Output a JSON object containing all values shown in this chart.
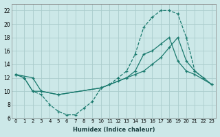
{
  "xlabel": "Humidex (Indice chaleur)",
  "background_color": "#cce8e8",
  "grid_color": "#aacccc",
  "line_color": "#1a7a6e",
  "xlim": [
    -0.5,
    23.5
  ],
  "ylim": [
    6,
    23
  ],
  "xticks": [
    0,
    1,
    2,
    3,
    4,
    5,
    6,
    7,
    8,
    9,
    10,
    11,
    12,
    13,
    14,
    15,
    16,
    17,
    18,
    19,
    20,
    21,
    22,
    23
  ],
  "yticks": [
    6,
    8,
    10,
    12,
    14,
    16,
    18,
    20,
    22
  ],
  "line1_x": [
    0,
    1,
    2,
    3,
    4,
    5,
    6,
    7,
    8,
    9,
    10,
    11,
    12,
    13,
    14,
    15,
    16,
    17,
    18,
    19,
    20,
    21,
    22
  ],
  "line1_y": [
    12.5,
    12,
    10,
    9.5,
    8,
    7,
    6.5,
    6.5,
    7.5,
    8.5,
    10.5,
    11,
    12,
    13,
    15.5,
    19.5,
    21,
    22,
    22,
    21.5,
    18,
    13,
    12
  ],
  "line2_x": [
    0,
    2,
    3,
    5,
    10,
    13,
    14,
    15,
    16,
    17,
    18,
    19,
    20,
    21,
    23
  ],
  "line2_y": [
    12.5,
    12,
    10,
    9.5,
    10.5,
    12,
    13,
    15.5,
    16,
    17,
    18,
    14.5,
    13,
    12.5,
    11
  ],
  "line3_x": [
    0,
    1,
    2,
    3,
    5,
    10,
    11,
    12,
    13,
    14,
    15,
    16,
    17,
    18,
    19,
    20,
    21,
    22,
    23
  ],
  "line3_y": [
    12.5,
    12,
    10,
    10,
    9.5,
    10.5,
    11,
    11.5,
    12,
    12.5,
    13,
    14,
    15,
    16.5,
    18,
    14.5,
    13,
    12,
    11
  ]
}
